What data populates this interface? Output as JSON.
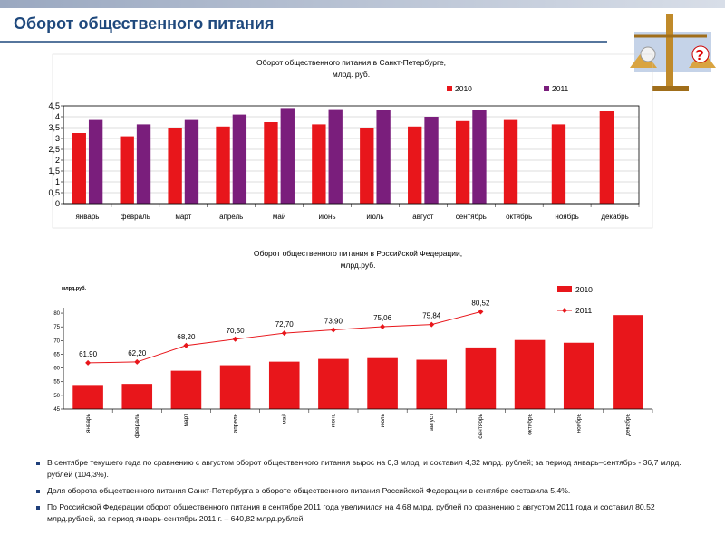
{
  "header": {
    "title": "Оборот общественного питания"
  },
  "chart_data": [
    {
      "type": "bar",
      "title": [
        "Оборот общественного питания в Санкт-Петербурге,",
        "млрд. руб."
      ],
      "categories": [
        "январь",
        "февраль",
        "март",
        "апрель",
        "май",
        "июнь",
        "июль",
        "август",
        "сентябрь",
        "октябрь",
        "ноябрь",
        "декабрь"
      ],
      "series": [
        {
          "name": "2010",
          "type": "bar",
          "color": "#e8161b",
          "values": [
            3.25,
            3.1,
            3.5,
            3.55,
            3.75,
            3.65,
            3.5,
            3.55,
            3.8,
            3.85,
            3.65,
            4.25
          ]
        },
        {
          "name": "2011",
          "type": "bar",
          "color": "#7a1e7c",
          "values": [
            3.85,
            3.65,
            3.85,
            4.1,
            4.4,
            4.35,
            4.3,
            4.0,
            4.32,
            null,
            null,
            null
          ]
        }
      ],
      "ylim": [
        0,
        4.5
      ],
      "yticks": [
        0,
        {
          "value": 0.5,
          "label": "0,5"
        },
        1,
        {
          "value": 1.5,
          "label": "1,5"
        },
        2,
        {
          "value": 2.5,
          "label": "2,5"
        },
        3,
        {
          "value": 3.5,
          "label": "3,5"
        },
        4,
        {
          "value": 4.5,
          "label": "4,5"
        }
      ],
      "grid": true,
      "legend": "top"
    },
    {
      "type": "bar",
      "title": [
        "Оборот общественного питания в Российской Федерации,",
        "млрд.руб."
      ],
      "ylabel": "млрд.руб.",
      "categories": [
        "январь",
        "февраль",
        "март",
        "апрель",
        "май",
        "июнь",
        "июль",
        "август",
        "сентябрь",
        "октябрь",
        "ноябрь",
        "декабрь"
      ],
      "series": [
        {
          "name": "2010",
          "type": "bar",
          "color": "#e8161b",
          "values": [
            53.8,
            54.2,
            59,
            61,
            62.3,
            63.3,
            63.6,
            63,
            67.5,
            70.2,
            69.2,
            79.3
          ]
        },
        {
          "name": "2011",
          "type": "line",
          "color": "#e8161b",
          "values": [
            61.9,
            62.2,
            68.2,
            70.5,
            72.7,
            73.9,
            75.06,
            75.84,
            80.52,
            null,
            null,
            null
          ],
          "value_labels": [
            "61,90",
            "62,20",
            "68,20",
            "70,50",
            "72,70",
            "73,90",
            "75,06",
            "75,84",
            "80,52",
            null,
            null,
            null
          ]
        }
      ],
      "ylim": [
        45,
        82
      ],
      "yticks": [
        45,
        50,
        55,
        60,
        65,
        70,
        75,
        80
      ],
      "grid": false,
      "legend": "right"
    }
  ],
  "notes": [
    "В сентябре текущего года по сравнению с августом оборот общественного питания вырос на 0,3 млрд. и составил 4,32 млрд. рублей;  за период январь–сентябрь - 36,7 млрд. рублей (104,3%).",
    "Доля оборота общественного питания Санкт-Петербурга в обороте общественного питания Российской Федерации в сентябре составила 5,4%.",
    "По Российской Федерации оборот общественного питания в сентябре 2011 года увеличился на 4,68 млрд. рублей по сравнению с августом 2011 года и составил 80,52 млрд.рублей, за период январь-сентябрь 2011 г. – 640,82 млрд.рублей."
  ]
}
